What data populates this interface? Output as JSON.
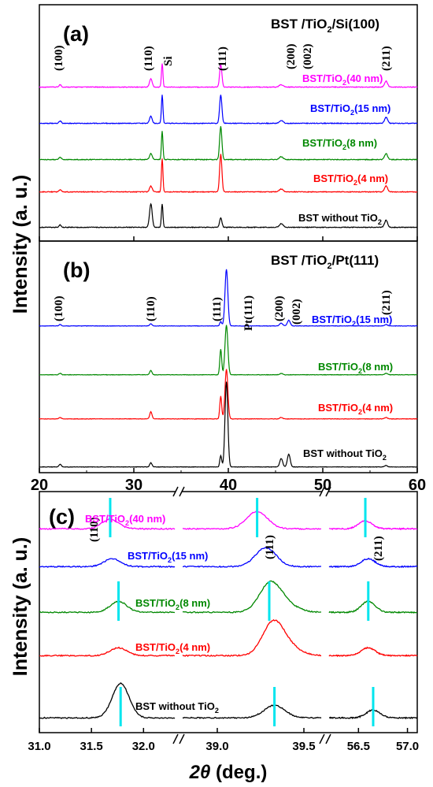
{
  "figure": {
    "ylabel": "Intensity (a. u.)",
    "xlabel_var": "2θ",
    "xlabel_unit": " (deg.)"
  },
  "panel_a": {
    "tag": "(a)",
    "title_main": "BST /TiO",
    "title_sub": "2",
    "title_rest": "/Si(100)",
    "peak_labels": [
      "(100)",
      "(110)",
      "Si",
      "(111)",
      "(200)",
      "(002)",
      "(211)"
    ],
    "traces": [
      {
        "label": "BST/TiO",
        "sub": "2",
        "rest": "(40 nm)",
        "color": "#ff00ff"
      },
      {
        "label": "BST/TiO",
        "sub": "2",
        "rest": "(15 nm)",
        "color": "#0000ff"
      },
      {
        "label": "BST/TiO",
        "sub": "2",
        "rest": "(8 nm)",
        "color": "#008800"
      },
      {
        "label": "BST/TiO",
        "sub": "2",
        "rest": "(4 nm)",
        "color": "#ff0000"
      },
      {
        "label": "BST without TiO",
        "sub": "2",
        "rest": "",
        "color": "#000000"
      }
    ]
  },
  "panel_b": {
    "tag": "(b)",
    "title_main": "BST /TiO",
    "title_sub": "2",
    "title_rest": "/Pt(111)",
    "peak_labels": [
      "(100)",
      "(110)",
      "(111)",
      "Pt(111)",
      "(200)",
      "(002)",
      "(211)"
    ],
    "x_ticks": [
      "20",
      "30",
      "40",
      "50",
      "60"
    ],
    "traces": [
      {
        "label": "BST/TiO",
        "sub": "2",
        "rest": "(15 nm)",
        "color": "#0000ff"
      },
      {
        "label": "BST/TiO",
        "sub": "2",
        "rest": "(8 nm)",
        "color": "#008800"
      },
      {
        "label": "BST/TiO",
        "sub": "2",
        "rest": "(4 nm)",
        "color": "#ff0000"
      },
      {
        "label": "BST without TiO",
        "sub": "2",
        "rest": "",
        "color": "#000000"
      }
    ]
  },
  "panel_c": {
    "tag": "(c)",
    "peak_labels": [
      "(110)",
      "(111)",
      "(211)"
    ],
    "x_ticks": [
      "31.0",
      "31.5",
      "32.0",
      "39.0",
      "39.5",
      "56.5",
      "57.0"
    ],
    "marker_color": "#00e5ee",
    "traces": [
      {
        "label": "BST/TiO",
        "sub": "2",
        "rest": "(40 nm)",
        "color": "#ff00ff"
      },
      {
        "label": "BST/TiO",
        "sub": "2",
        "rest": "(15 nm)",
        "color": "#0000ff"
      },
      {
        "label": "BST/TiO",
        "sub": "2",
        "rest": "(8 nm)",
        "color": "#008800"
      },
      {
        "label": "BST/TiO",
        "sub": "2",
        "rest": "(4 nm)",
        "color": "#ff0000"
      },
      {
        "label": "BST without TiO",
        "sub": "2",
        "rest": "",
        "color": "#000000"
      }
    ]
  },
  "chart_data": [
    {
      "type": "line",
      "panel": "a",
      "title": "BST /TiO2/Si(100)",
      "xlabel": "2θ (deg.)",
      "ylabel": "Intensity (a. u.)",
      "xlim": [
        20,
        60
      ],
      "peaks_2theta": {
        "(100)": 22.2,
        "(110)": 31.8,
        "Si": 33.0,
        "(111)": 39.2,
        "(200)": 45.6,
        "(002)": 46.2,
        "(211)": 56.7
      },
      "series": [
        {
          "name": "BST/TiO2(40 nm)",
          "peak_heights": {
            "(100)": 0.1,
            "(110)": 0.35,
            "Si": 1.0,
            "(111)": 0.95,
            "(200)": 0.1,
            "(211)": 0.25
          }
        },
        {
          "name": "BST/TiO2(15 nm)",
          "peak_heights": {
            "(100)": 0.1,
            "(110)": 0.3,
            "Si": 1.2,
            "(111)": 1.2,
            "(200)": 0.12,
            "(211)": 0.25
          }
        },
        {
          "name": "BST/TiO2(8 nm)",
          "peak_heights": {
            "(100)": 0.1,
            "(110)": 0.25,
            "Si": 1.2,
            "(111)": 1.4,
            "(200)": 0.12,
            "(211)": 0.25
          }
        },
        {
          "name": "BST/TiO2(4 nm)",
          "peak_heights": {
            "(100)": 0.1,
            "(110)": 0.25,
            "Si": 1.4,
            "(111)": 1.6,
            "(200)": 0.12,
            "(211)": 0.25
          }
        },
        {
          "name": "BST without TiO2",
          "peak_heights": {
            "(100)": 0.1,
            "(110)": 1.0,
            "Si": 1.0,
            "(111)": 0.4,
            "(200)": 0.15,
            "(211)": 0.3
          }
        }
      ]
    },
    {
      "type": "line",
      "panel": "b",
      "title": "BST /TiO2/Pt(111)",
      "xlabel": "2θ (deg.)",
      "ylabel": "Intensity (a. u.)",
      "xlim": [
        20,
        60
      ],
      "x_ticks": [
        20,
        30,
        40,
        50,
        60
      ],
      "peaks_2theta": {
        "(100)": 22.2,
        "(110)": 31.8,
        "(111)": 39.2,
        "Pt(111)": 39.8,
        "(200)": 45.6,
        "(002)": 46.4,
        "(211)": 56.7
      },
      "series": [
        {
          "name": "BST/TiO2(15 nm)",
          "peak_heights": {
            "(100)": 0.1,
            "(110)": 0.15,
            "(111)": 0.3,
            "Pt(111)": 4.0,
            "(200)": 0.2,
            "(002)": 0.4,
            "(211)": 0.1
          }
        },
        {
          "name": "BST/TiO2(8 nm)",
          "peak_heights": {
            "(100)": 0.1,
            "(110)": 0.3,
            "(111)": 1.8,
            "Pt(111)": 3.5,
            "(200)": 0.1,
            "(211)": 0.1
          }
        },
        {
          "name": "BST/TiO2(4 nm)",
          "peak_heights": {
            "(100)": 0.1,
            "(110)": 0.5,
            "(111)": 1.6,
            "Pt(111)": 3.5,
            "(200)": 0.1,
            "(211)": 0.1
          }
        },
        {
          "name": "BST without TiO2",
          "peak_heights": {
            "(100)": 0.2,
            "(110)": 0.3,
            "(111)": 0.8,
            "Pt(111)": 6.0,
            "(200)": 0.6,
            "(002)": 0.9,
            "(211)": 0.1
          }
        }
      ]
    },
    {
      "type": "line",
      "panel": "c",
      "xlabel": "2θ (deg.)",
      "ylabel": "Intensity (a. u.)",
      "x_segments": [
        [
          31.0,
          32.3
        ],
        [
          38.8,
          39.6
        ],
        [
          56.2,
          57.1
        ]
      ],
      "x_ticks": [
        31.0,
        31.5,
        32.0,
        39.0,
        39.5,
        56.5,
        57.0
      ],
      "series": [
        {
          "name": "BST/TiO2(40 nm)",
          "peak_positions": {
            "(110)": 31.68,
            "(111)": 39.23,
            "(211)": 56.57
          }
        },
        {
          "name": "BST/TiO2(15 nm)",
          "peak_positions": {
            "(110)": 31.7,
            "(111)": 39.28,
            "(211)": 56.6
          }
        },
        {
          "name": "BST/TiO2(8 nm)",
          "peak_positions": {
            "(110)": 31.76,
            "(111)": 39.3,
            "(211)": 56.6
          }
        },
        {
          "name": "BST/TiO2(4 nm)",
          "peak_positions": {
            "(110)": 31.76,
            "(111)": 39.32,
            "(211)": 56.6
          }
        },
        {
          "name": "BST without TiO2",
          "peak_positions": {
            "(110)": 31.78,
            "(111)": 39.33,
            "(211)": 56.65
          }
        }
      ]
    }
  ]
}
